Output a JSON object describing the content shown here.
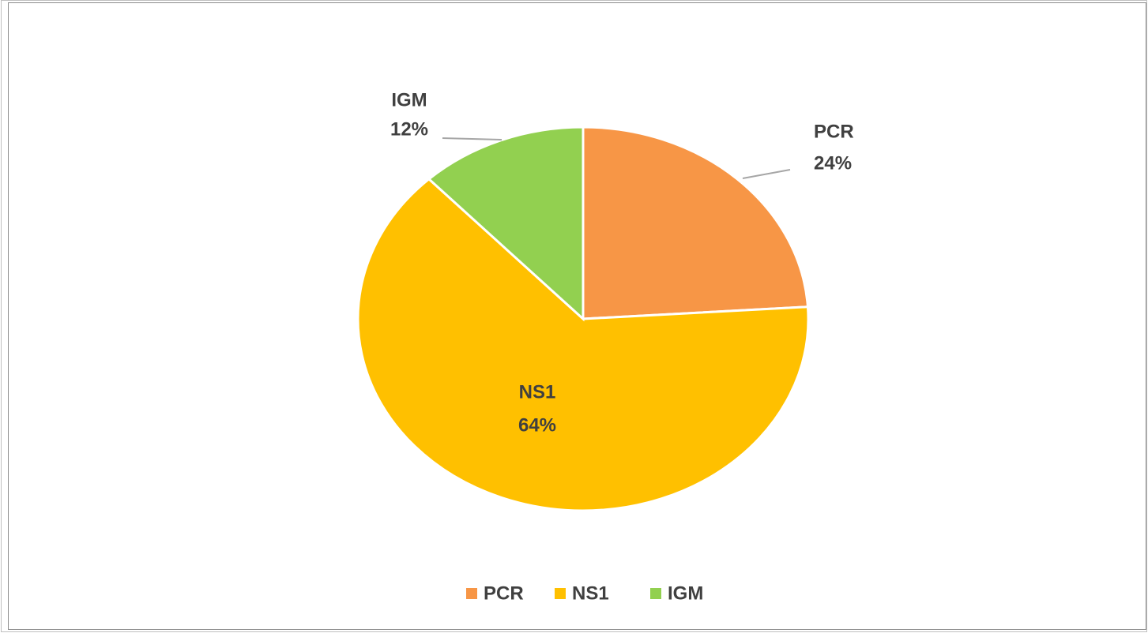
{
  "chart_data": {
    "type": "pie",
    "categories": [
      "PCR",
      "NS1",
      "IGM"
    ],
    "values": [
      24,
      64,
      12
    ],
    "value_labels": [
      "24%",
      "64%",
      "12%"
    ],
    "colors": [
      "#f79646",
      "#ffc000",
      "#92d050"
    ],
    "legend": "bottom"
  }
}
